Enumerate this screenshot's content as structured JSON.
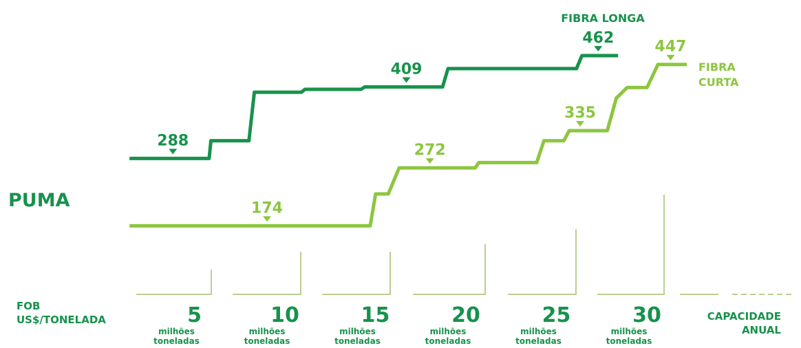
{
  "chart_data": {
    "type": "step-line",
    "title": "PUMA",
    "y_axis_label": [
      "FOB",
      "US$/TONELADA"
    ],
    "x_axis_label": [
      "CAPACIDADE",
      "ANUAL"
    ],
    "x_unit_label": [
      "milhões",
      "toneladas"
    ],
    "xlim": [
      0,
      32
    ],
    "ylim": [
      0,
      556
    ],
    "xticks": [
      5,
      10,
      15,
      20,
      25,
      30
    ],
    "series": [
      {
        "name": [
          "FIBRA LONGA"
        ],
        "color": "#17924c",
        "x": [
          0.5,
          4.9,
          5.0,
          7.1,
          7.4,
          10.0,
          10.2,
          13.3,
          13.5,
          17.8,
          18.1,
          25.2,
          25.5,
          27.5
        ],
        "values": [
          288,
          288,
          318,
          318,
          400,
          400,
          405,
          405,
          409,
          409,
          440,
          440,
          462,
          462
        ],
        "labels": [
          {
            "x": 2.9,
            "value": 288
          },
          {
            "x": 15.8,
            "value": 409
          },
          {
            "x": 26.4,
            "value": 462
          }
        ]
      },
      {
        "name": [
          "FIBRA",
          "CURTA"
        ],
        "color": "#8cc63f",
        "x": [
          0.5,
          13.8,
          14.1,
          14.8,
          15.4,
          19.6,
          19.8,
          23.0,
          23.4,
          24.5,
          24.8,
          26.9,
          27.4,
          28.0,
          29.1,
          29.7,
          31.3
        ],
        "values": [
          174,
          174,
          228,
          228,
          272,
          272,
          281,
          281,
          318,
          318,
          335,
          335,
          390,
          408,
          408,
          447,
          447
        ],
        "labels": [
          {
            "x": 8.1,
            "value": 174
          },
          {
            "x": 17.1,
            "value": 272
          },
          {
            "x": 25.4,
            "value": 335
          },
          {
            "x": 30.4,
            "value": 447
          }
        ]
      }
    ]
  }
}
